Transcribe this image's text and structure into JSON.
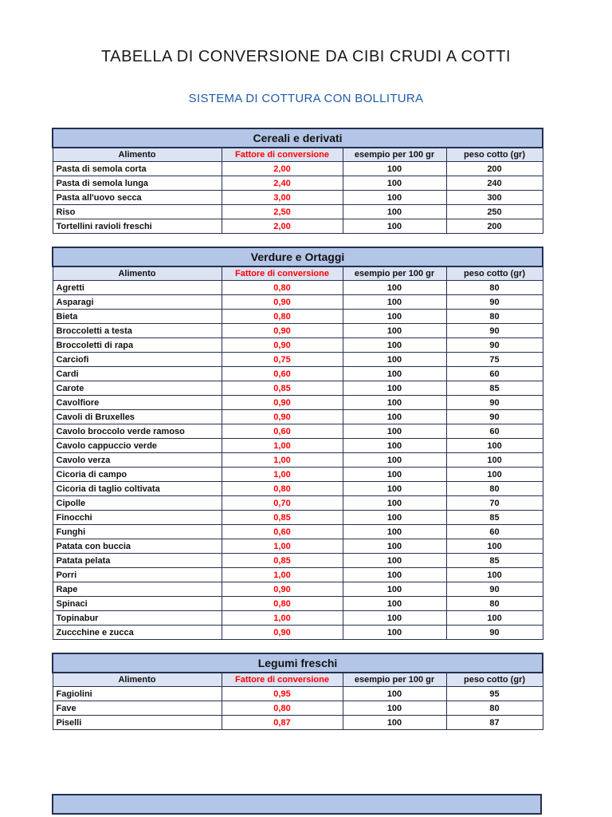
{
  "page": {
    "title": "TABELLA DI CONVERSIONE DA CIBI CRUDI A COTTI",
    "subtitle": "SISTEMA DI COTTURA CON BOLLITURA"
  },
  "colors": {
    "section_header_bg": "#b4c6e7",
    "column_header_bg": "#dce3f3",
    "factor_text": "#ff0000",
    "subtitle_text": "#1f5ba9",
    "border": "#23304f"
  },
  "columns": [
    "Alimento",
    "Fattore di conversione",
    "esempio per 100 gr",
    "peso cotto (gr)"
  ],
  "tables": [
    {
      "title": "Cereali e derivati",
      "rows": [
        [
          "Pasta di semola corta",
          "2,00",
          "100",
          "200"
        ],
        [
          "Pasta di semola lunga",
          "2,40",
          "100",
          "240"
        ],
        [
          "Pasta all'uovo secca",
          "3,00",
          "100",
          "300"
        ],
        [
          "Riso",
          "2,50",
          "100",
          "250"
        ],
        [
          "Tortellini ravioli freschi",
          "2,00",
          "100",
          "200"
        ]
      ]
    },
    {
      "title": "Verdure e Ortaggi",
      "rows": [
        [
          "Agretti",
          "0,80",
          "100",
          "80"
        ],
        [
          "Asparagi",
          "0,90",
          "100",
          "90"
        ],
        [
          "Bieta",
          "0,80",
          "100",
          "80"
        ],
        [
          "Broccoletti a testa",
          "0,90",
          "100",
          "90"
        ],
        [
          "Broccoletti di rapa",
          "0,90",
          "100",
          "90"
        ],
        [
          "Carciofi",
          "0,75",
          "100",
          "75"
        ],
        [
          "Cardi",
          "0,60",
          "100",
          "60"
        ],
        [
          "Carote",
          "0,85",
          "100",
          "85"
        ],
        [
          "Cavolfiore",
          "0,90",
          "100",
          "90"
        ],
        [
          "Cavoli di Bruxelles",
          "0,90",
          "100",
          "90"
        ],
        [
          "Cavolo broccolo verde ramoso",
          "0,60",
          "100",
          "60"
        ],
        [
          "Cavolo cappuccio verde",
          "1,00",
          "100",
          "100"
        ],
        [
          "Cavolo verza",
          "1,00",
          "100",
          "100"
        ],
        [
          "Cicoria di campo",
          "1,00",
          "100",
          "100"
        ],
        [
          "Cicoria di taglio coltivata",
          "0,80",
          "100",
          "80"
        ],
        [
          "Cipolle",
          "0,70",
          "100",
          "70"
        ],
        [
          "Finocchi",
          "0,85",
          "100",
          "85"
        ],
        [
          "Funghi",
          "0,60",
          "100",
          "60"
        ],
        [
          "Patata con buccia",
          "1,00",
          "100",
          "100"
        ],
        [
          "Patata pelata",
          "0,85",
          "100",
          "85"
        ],
        [
          "Porri",
          "1,00",
          "100",
          "100"
        ],
        [
          "Rape",
          "0,90",
          "100",
          "90"
        ],
        [
          "Spinaci",
          "0,80",
          "100",
          "80"
        ],
        [
          "Topinabur",
          "1,00",
          "100",
          "100"
        ],
        [
          "Zuccchine e zucca",
          "0,90",
          "100",
          "90"
        ]
      ]
    },
    {
      "title": "Legumi freschi",
      "rows": [
        [
          "Fagiolini",
          "0,95",
          "100",
          "95"
        ],
        [
          "Fave",
          "0,80",
          "100",
          "80"
        ],
        [
          "Piselli",
          "0,87",
          "100",
          "87"
        ]
      ]
    }
  ]
}
